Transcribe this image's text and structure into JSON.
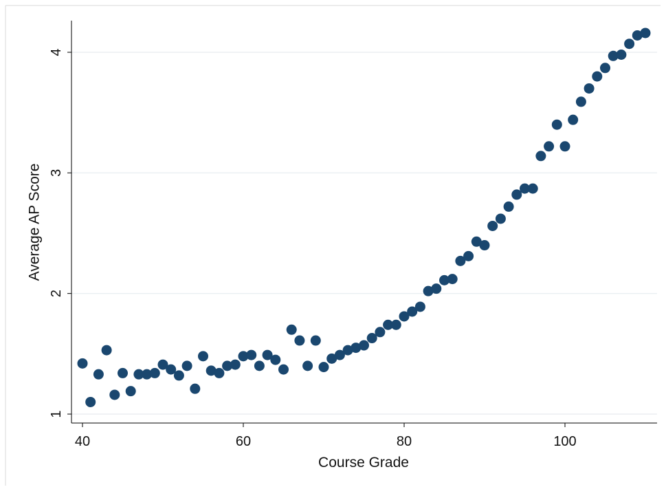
{
  "chart_data": {
    "type": "scatter",
    "title": "",
    "xlabel": "Course Grade",
    "ylabel": "Average AP Score",
    "xlim": [
      38.5,
      111.5
    ],
    "ylim": [
      0.9,
      4.25
    ],
    "x_ticks": [
      40,
      60,
      80,
      100
    ],
    "y_ticks": [
      1,
      2,
      3,
      4
    ],
    "grid": "horizontal",
    "legend": "none",
    "marker_color": "#1a476f",
    "series": [
      {
        "points": [
          [
            40,
            1.42
          ],
          [
            41,
            1.1
          ],
          [
            42,
            1.33
          ],
          [
            43,
            1.53
          ],
          [
            44,
            1.16
          ],
          [
            45,
            1.34
          ],
          [
            46,
            1.19
          ],
          [
            47,
            1.33
          ],
          [
            48,
            1.33
          ],
          [
            49,
            1.34
          ],
          [
            50,
            1.41
          ],
          [
            51,
            1.37
          ],
          [
            52,
            1.32
          ],
          [
            53,
            1.4
          ],
          [
            54,
            1.21
          ],
          [
            55,
            1.48
          ],
          [
            56,
            1.36
          ],
          [
            57,
            1.34
          ],
          [
            58,
            1.4
          ],
          [
            59,
            1.41
          ],
          [
            60,
            1.48
          ],
          [
            61,
            1.49
          ],
          [
            62,
            1.4
          ],
          [
            63,
            1.49
          ],
          [
            64,
            1.45
          ],
          [
            65,
            1.37
          ],
          [
            66,
            1.7
          ],
          [
            67,
            1.61
          ],
          [
            68,
            1.4
          ],
          [
            69,
            1.61
          ],
          [
            70,
            1.39
          ],
          [
            71,
            1.46
          ],
          [
            72,
            1.49
          ],
          [
            73,
            1.53
          ],
          [
            74,
            1.55
          ],
          [
            75,
            1.57
          ],
          [
            76,
            1.63
          ],
          [
            77,
            1.68
          ],
          [
            78,
            1.74
          ],
          [
            79,
            1.74
          ],
          [
            80,
            1.81
          ],
          [
            81,
            1.85
          ],
          [
            82,
            1.89
          ],
          [
            83,
            2.02
          ],
          [
            84,
            2.04
          ],
          [
            85,
            2.11
          ],
          [
            86,
            2.12
          ],
          [
            87,
            2.27
          ],
          [
            88,
            2.31
          ],
          [
            89,
            2.43
          ],
          [
            90,
            2.4
          ],
          [
            91,
            2.56
          ],
          [
            92,
            2.62
          ],
          [
            93,
            2.72
          ],
          [
            94,
            2.82
          ],
          [
            95,
            2.87
          ],
          [
            96,
            2.87
          ],
          [
            97,
            3.14
          ],
          [
            98,
            3.22
          ],
          [
            99,
            3.4
          ],
          [
            100,
            3.22
          ],
          [
            101,
            3.44
          ],
          [
            102,
            3.59
          ],
          [
            103,
            3.7
          ],
          [
            104,
            3.8
          ],
          [
            105,
            3.87
          ],
          [
            106,
            3.97
          ],
          [
            107,
            3.98
          ],
          [
            108,
            4.07
          ],
          [
            109,
            4.14
          ],
          [
            110,
            4.16
          ]
        ]
      }
    ]
  }
}
